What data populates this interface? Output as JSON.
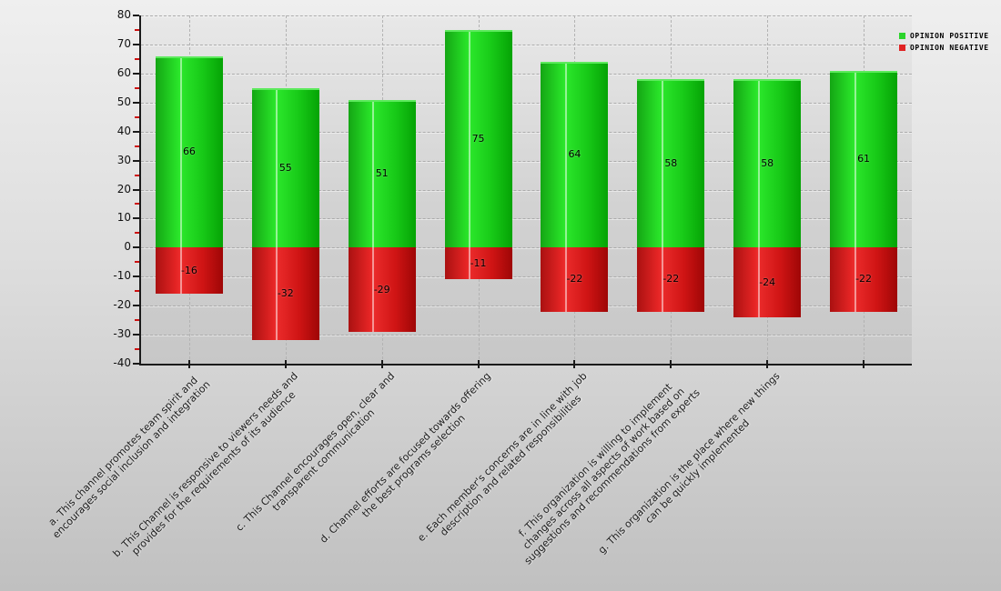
{
  "legend": {
    "items": [
      {
        "label": "OPINION POSITIVE",
        "color": "#2bd42b"
      },
      {
        "label": "OPINION NEGATIVE",
        "color": "#e02222"
      }
    ]
  },
  "chart_data": {
    "type": "bar",
    "title": "",
    "xlabel": "",
    "ylabel": "",
    "ylim": [
      -40,
      80
    ],
    "yticks": [
      80,
      70,
      60,
      50,
      40,
      30,
      20,
      10,
      0,
      -10,
      -20,
      -30,
      -40
    ],
    "ytick_minor_step": 5,
    "grid": true,
    "legend_position": "top-right",
    "categories": [
      {
        "text": "a. This channel promotes team spirit and encourages social inclusion and integration",
        "lines": [
          "a. This channel promotes team spirit and",
          "encourages social inclusion and integration"
        ]
      },
      {
        "text": "b. This Channel is responsive to viewers needs and provides for the requirements of its audience",
        "lines": [
          "b. This Channel is responsive to viewers needs and",
          "provides for the requirements of its audience"
        ]
      },
      {
        "text": "c. This Channel encourages open, clear and transparent communication",
        "lines": [
          "c. This Channel encourages open, clear and",
          "transparent communication"
        ]
      },
      {
        "text": "d. Channel efforts are focused towards offering the best programs selection",
        "lines": [
          "d. Channel efforts are focused towards offering",
          "the best programs selection"
        ]
      },
      {
        "text": "e. Each member's concerns are in line with job description and related responsibilities",
        "lines": [
          "e. Each member's concerns are in line with job",
          "description and related responsibilities"
        ]
      },
      {
        "text": "f. This organization is willing to implement changes across all aspects of work based on suggestions and recommendations from experts",
        "lines": [
          "f. This organization is willing to implement",
          "changes across all aspects of work based on",
          "suggestions and recommendations from experts"
        ]
      },
      {
        "text": "g. This organization is the place where new things can be quickly implemented",
        "lines": [
          "g. This organization is the place where new things",
          "can be quickly implemented"
        ]
      },
      {
        "text": "",
        "lines": []
      }
    ],
    "series": [
      {
        "name": "OPINION POSITIVE",
        "color": "#2bd42b",
        "values": [
          66,
          55,
          51,
          75,
          64,
          58,
          58,
          61
        ]
      },
      {
        "name": "OPINION NEGATIVE",
        "color": "#e02222",
        "values": [
          -16,
          -32,
          -29,
          -11,
          -22,
          -22,
          -24,
          -22
        ]
      }
    ]
  }
}
